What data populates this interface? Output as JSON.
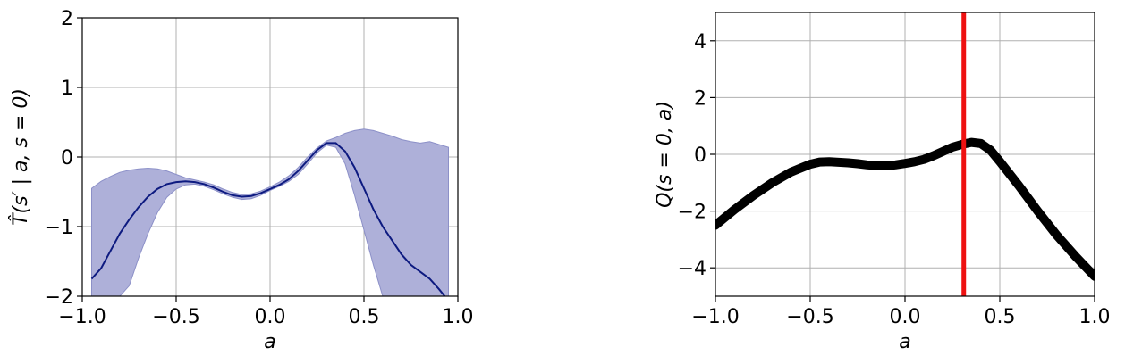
{
  "chart_data": [
    {
      "type": "line",
      "title": "",
      "xlabel": "a",
      "ylabel": "T̂(s′ | a, s = 0)",
      "xlim": [
        -1.0,
        1.0
      ],
      "ylim": [
        -2,
        2
      ],
      "x_ticks": [
        "−1.0",
        "−0.5",
        "0.0",
        "0.5",
        "1.0"
      ],
      "y_ticks": [
        "2",
        "1",
        "0",
        "−1",
        "−2"
      ],
      "grid": true,
      "colors": {
        "mean_line": "#0d1a80",
        "band_fill": "#aeb0d9",
        "band_edge": "#8c90c8"
      },
      "series": [
        {
          "kind": "mean",
          "x": [
            -0.95,
            -0.9,
            -0.85,
            -0.8,
            -0.75,
            -0.7,
            -0.65,
            -0.6,
            -0.55,
            -0.5,
            -0.45,
            -0.4,
            -0.35,
            -0.3,
            -0.25,
            -0.2,
            -0.15,
            -0.1,
            -0.05,
            0.0,
            0.05,
            0.1,
            0.15,
            0.2,
            0.25,
            0.3,
            0.35,
            0.4,
            0.45,
            0.5,
            0.55,
            0.6,
            0.65,
            0.7,
            0.75,
            0.8,
            0.85,
            0.9,
            0.93
          ],
          "y": [
            -1.75,
            -1.6,
            -1.35,
            -1.1,
            -0.9,
            -0.72,
            -0.57,
            -0.46,
            -0.39,
            -0.36,
            -0.35,
            -0.36,
            -0.39,
            -0.44,
            -0.5,
            -0.55,
            -0.57,
            -0.56,
            -0.52,
            -0.46,
            -0.4,
            -0.32,
            -0.2,
            -0.05,
            0.1,
            0.2,
            0.2,
            0.08,
            -0.15,
            -0.45,
            -0.75,
            -1.0,
            -1.2,
            -1.4,
            -1.55,
            -1.65,
            -1.75,
            -1.9,
            -2.0
          ]
        },
        {
          "kind": "band",
          "x": [
            -0.95,
            -0.9,
            -0.85,
            -0.8,
            -0.75,
            -0.7,
            -0.65,
            -0.6,
            -0.55,
            -0.5,
            -0.45,
            -0.4,
            -0.35,
            -0.3,
            -0.25,
            -0.2,
            -0.15,
            -0.1,
            -0.05,
            0.0,
            0.05,
            0.1,
            0.15,
            0.2,
            0.25,
            0.3,
            0.35,
            0.4,
            0.45,
            0.5,
            0.55,
            0.6,
            0.65,
            0.7,
            0.75,
            0.8,
            0.85,
            0.9,
            0.95
          ],
          "upper": [
            -0.45,
            -0.35,
            -0.28,
            -0.22,
            -0.19,
            -0.17,
            -0.16,
            -0.17,
            -0.2,
            -0.25,
            -0.3,
            -0.33,
            -0.36,
            -0.4,
            -0.46,
            -0.51,
            -0.54,
            -0.53,
            -0.49,
            -0.43,
            -0.36,
            -0.27,
            -0.15,
            0.0,
            0.13,
            0.23,
            0.28,
            0.34,
            0.38,
            0.4,
            0.38,
            0.34,
            0.3,
            0.25,
            0.22,
            0.2,
            0.22,
            0.18,
            0.14
          ],
          "lower": [
            -2.0,
            -2.0,
            -2.0,
            -2.0,
            -1.85,
            -1.45,
            -1.1,
            -0.8,
            -0.58,
            -0.46,
            -0.4,
            -0.39,
            -0.42,
            -0.47,
            -0.53,
            -0.58,
            -0.61,
            -0.6,
            -0.55,
            -0.48,
            -0.42,
            -0.35,
            -0.25,
            -0.1,
            0.06,
            0.17,
            0.14,
            -0.1,
            -0.55,
            -1.05,
            -1.55,
            -2.0,
            -2.0,
            -2.0,
            -2.0,
            -2.0,
            -2.0,
            -2.0,
            -2.0
          ]
        }
      ]
    },
    {
      "type": "line",
      "title": "",
      "xlabel": "a",
      "ylabel": "Q(s = 0, a)",
      "xlim": [
        -1.0,
        1.0
      ],
      "ylim": [
        -5,
        5
      ],
      "x_ticks": [
        "−1.0",
        "−0.5",
        "0.0",
        "0.5",
        "1.0"
      ],
      "y_ticks": [
        "4",
        "2",
        "0",
        "−2",
        "−4"
      ],
      "grid": true,
      "colors": {
        "q_line": "#000000",
        "marker_line": "#ee1111"
      },
      "vertical_line_x": 0.31,
      "series": [
        {
          "kind": "q",
          "x": [
            -1.0,
            -0.9,
            -0.8,
            -0.7,
            -0.6,
            -0.5,
            -0.45,
            -0.4,
            -0.35,
            -0.3,
            -0.25,
            -0.2,
            -0.15,
            -0.1,
            -0.05,
            0.0,
            0.05,
            0.1,
            0.15,
            0.2,
            0.25,
            0.3,
            0.35,
            0.4,
            0.45,
            0.5,
            0.6,
            0.7,
            0.8,
            0.9,
            1.0
          ],
          "y": [
            -2.5,
            -1.95,
            -1.45,
            -1.0,
            -0.62,
            -0.35,
            -0.27,
            -0.26,
            -0.28,
            -0.3,
            -0.33,
            -0.37,
            -0.4,
            -0.41,
            -0.37,
            -0.32,
            -0.26,
            -0.18,
            -0.05,
            0.1,
            0.25,
            0.35,
            0.42,
            0.38,
            0.15,
            -0.25,
            -1.1,
            -2.0,
            -2.85,
            -3.6,
            -4.3
          ]
        }
      ]
    }
  ]
}
